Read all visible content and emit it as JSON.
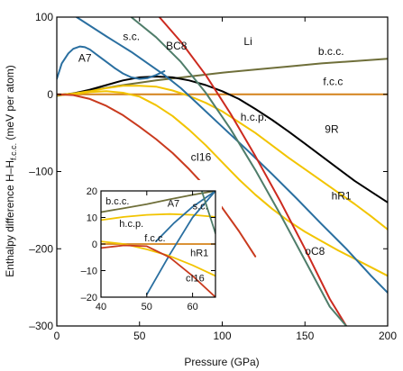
{
  "chart_data": [
    {
      "type": "line",
      "xlabel": "Pressure (GPa)",
      "ylabel": "Enthalpy difference H–H",
      "ylabel_sub": "f.c.c.",
      "ylabel_unit": " (meV per atom)",
      "xlim": [
        0,
        200
      ],
      "ylim": [
        -300,
        100
      ],
      "xticks": [
        0,
        50,
        100,
        150,
        200
      ],
      "yticks": [
        -300,
        -200,
        -100,
        0,
        100
      ],
      "xtick_labels": [
        "0",
        "50",
        "100",
        "150",
        "200"
      ],
      "ytick_labels": [
        "–300",
        "–200",
        "–100",
        "0",
        "100"
      ],
      "annotations": [
        {
          "text": "Li",
          "x": 113,
          "y": 64
        },
        {
          "text": "s.c.",
          "x": 40,
          "y": 70
        },
        {
          "text": "BC8",
          "x": 66,
          "y": 58
        },
        {
          "text": "A7",
          "x": 13,
          "y": 42
        },
        {
          "text": "b.c.c.",
          "x": 158,
          "y": 51
        },
        {
          "text": "f.c.c",
          "x": 161,
          "y": 12
        },
        {
          "text": "h.c.p.",
          "x": 111,
          "y": -34
        },
        {
          "text": "9R",
          "x": 162,
          "y": -50
        },
        {
          "text": "cI16",
          "x": 81,
          "y": -86
        },
        {
          "text": "hR1",
          "x": 166,
          "y": -136
        },
        {
          "text": "oC8",
          "x": 150,
          "y": -208
        }
      ],
      "series": [
        {
          "id": "fcc",
          "color": "#d4821a",
          "x": [
            0,
            200
          ],
          "y": [
            0,
            0
          ]
        },
        {
          "id": "bcc",
          "color": "#6f6f3a",
          "x": [
            0,
            20,
            40,
            60,
            80,
            100,
            120,
            140,
            160,
            180,
            200
          ],
          "y": [
            -2,
            5,
            12,
            18,
            23,
            28,
            32,
            36,
            40,
            43,
            46
          ]
        },
        {
          "id": "9R",
          "color": "#000000",
          "x": [
            0,
            10,
            20,
            30,
            40,
            50,
            60,
            70,
            80,
            90,
            100,
            110,
            120,
            130,
            140,
            150,
            160,
            170,
            180,
            190,
            200
          ],
          "y": [
            -1,
            1,
            6,
            12,
            18,
            22,
            23,
            22,
            18,
            12,
            4,
            -6,
            -19,
            -33,
            -48,
            -64,
            -80,
            -96,
            -112,
            -126,
            -140
          ]
        },
        {
          "id": "hcp",
          "color": "#f2c400",
          "x": [
            0,
            10,
            20,
            30,
            40,
            50,
            60,
            70,
            80,
            90,
            100,
            110,
            120,
            130,
            140,
            150,
            160,
            170,
            180,
            190,
            200
          ],
          "y": [
            -1,
            1,
            4,
            8,
            11,
            11,
            10,
            5,
            -2,
            -11,
            -22,
            -36,
            -50,
            -66,
            -82,
            -97,
            -112,
            -127,
            -142,
            -158,
            -175
          ]
        },
        {
          "id": "hR1",
          "color": "#f2c400",
          "x": [
            0,
            10,
            20,
            30,
            40,
            50,
            60,
            70,
            80,
            90,
            100,
            110,
            120,
            130,
            140,
            150,
            160,
            170,
            180,
            190,
            200
          ],
          "y": [
            -1,
            0,
            3,
            4,
            2,
            -3,
            -14,
            -28,
            -46,
            -66,
            -88,
            -110,
            -130,
            -148,
            -164,
            -178,
            -190,
            -202,
            -213,
            -224,
            -235
          ]
        },
        {
          "id": "A7",
          "color": "#2a6fa0",
          "x": [
            0,
            3,
            7,
            10,
            14,
            17,
            20,
            25,
            30,
            35,
            40,
            45,
            50,
            55,
            60,
            65
          ],
          "y": [
            20,
            40,
            53,
            59,
            62,
            61,
            58,
            50,
            42,
            34,
            27,
            22,
            20,
            21,
            25,
            30
          ]
        },
        {
          "id": "sc",
          "color": "#2a6fa0",
          "x": [
            12,
            30,
            45,
            55,
            65,
            75,
            85,
            100,
            115,
            130,
            145,
            160,
            175,
            190,
            200
          ],
          "y": [
            100,
            75,
            55,
            40,
            25,
            8,
            -12,
            -42,
            -72,
            -103,
            -135,
            -168,
            -200,
            -235,
            -257
          ]
        },
        {
          "id": "BC8",
          "color": "#cc2a1f",
          "x": [
            62,
            75,
            90,
            105,
            120,
            135,
            150,
            165,
            175
          ],
          "y": [
            100,
            68,
            25,
            -25,
            -80,
            -138,
            -200,
            -265,
            -300
          ]
        },
        {
          "id": "oC8",
          "color": "#4f7d6a",
          "x": [
            45,
            60,
            75,
            90,
            105,
            120,
            135,
            150,
            165,
            175
          ],
          "y": [
            100,
            74,
            42,
            2,
            -45,
            -98,
            -155,
            -215,
            -275,
            -300
          ]
        },
        {
          "id": "cI16",
          "color": "#c93a1e",
          "x": [
            0,
            10,
            20,
            30,
            40,
            50,
            60,
            70,
            80,
            90,
            100,
            110,
            120
          ],
          "y": [
            0,
            -1,
            -6,
            -15,
            -27,
            -42,
            -58,
            -76,
            -97,
            -120,
            -147,
            -177,
            -210
          ]
        }
      ]
    },
    {
      "type": "line",
      "xlim": [
        40,
        65
      ],
      "ylim": [
        -20,
        20
      ],
      "xticks": [
        40,
        50,
        60
      ],
      "yticks": [
        -20,
        -10,
        0,
        10,
        20
      ],
      "xtick_labels": [
        "40",
        "50",
        "60"
      ],
      "ytick_labels": [
        "–20",
        "–10",
        "0",
        "10",
        "20"
      ],
      "annotations": [
        {
          "text": "b.c.c.",
          "x": 41,
          "y": 15
        },
        {
          "text": "A7",
          "x": 54.5,
          "y": 14
        },
        {
          "text": "s.c.",
          "x": 60,
          "y": 13
        },
        {
          "text": "h.c.p.",
          "x": 44,
          "y": 6.5
        },
        {
          "text": "f.c.c.",
          "x": 49.5,
          "y": 1
        },
        {
          "text": "hR1",
          "x": 59.5,
          "y": -4.5
        },
        {
          "text": "cI16",
          "x": 58.5,
          "y": -14
        }
      ],
      "series": [
        {
          "id": "in-fcc",
          "color": "#d4821a",
          "x": [
            40,
            65
          ],
          "y": [
            0,
            0
          ]
        },
        {
          "id": "in-bcc",
          "color": "#6f6f3a",
          "x": [
            40,
            45,
            50,
            55,
            60,
            65
          ],
          "y": [
            12,
            13.5,
            15,
            16.8,
            18.5,
            20
          ]
        },
        {
          "id": "in-hcp",
          "color": "#f2c400",
          "x": [
            40,
            45,
            50,
            55,
            60,
            65
          ],
          "y": [
            9,
            10.2,
            11,
            11.3,
            11,
            10.2
          ]
        },
        {
          "id": "in-A7",
          "color": "#2a6fa0",
          "x": [
            52,
            56,
            60,
            65
          ],
          "y": [
            1,
            8,
            14,
            20
          ]
        },
        {
          "id": "in-sc",
          "color": "#2a6fa0",
          "x": [
            50,
            55,
            60,
            65
          ],
          "y": [
            -19,
            -4,
            10,
            20
          ]
        },
        {
          "id": "in-hR1",
          "color": "#f2c400",
          "x": [
            40,
            45,
            50,
            55,
            60,
            65
          ],
          "y": [
            1,
            0,
            -2,
            -4.5,
            -8,
            -12
          ]
        },
        {
          "id": "in-oC8",
          "color": "#4f7d6a",
          "x": [
            62,
            65
          ],
          "y": [
            20,
            4
          ]
        },
        {
          "id": "in-cI16",
          "color": "#c93a1e",
          "x": [
            40,
            45,
            50,
            55,
            60,
            65
          ],
          "y": [
            -1.5,
            -0.5,
            -0.8,
            -5,
            -12,
            -20
          ]
        }
      ]
    }
  ]
}
